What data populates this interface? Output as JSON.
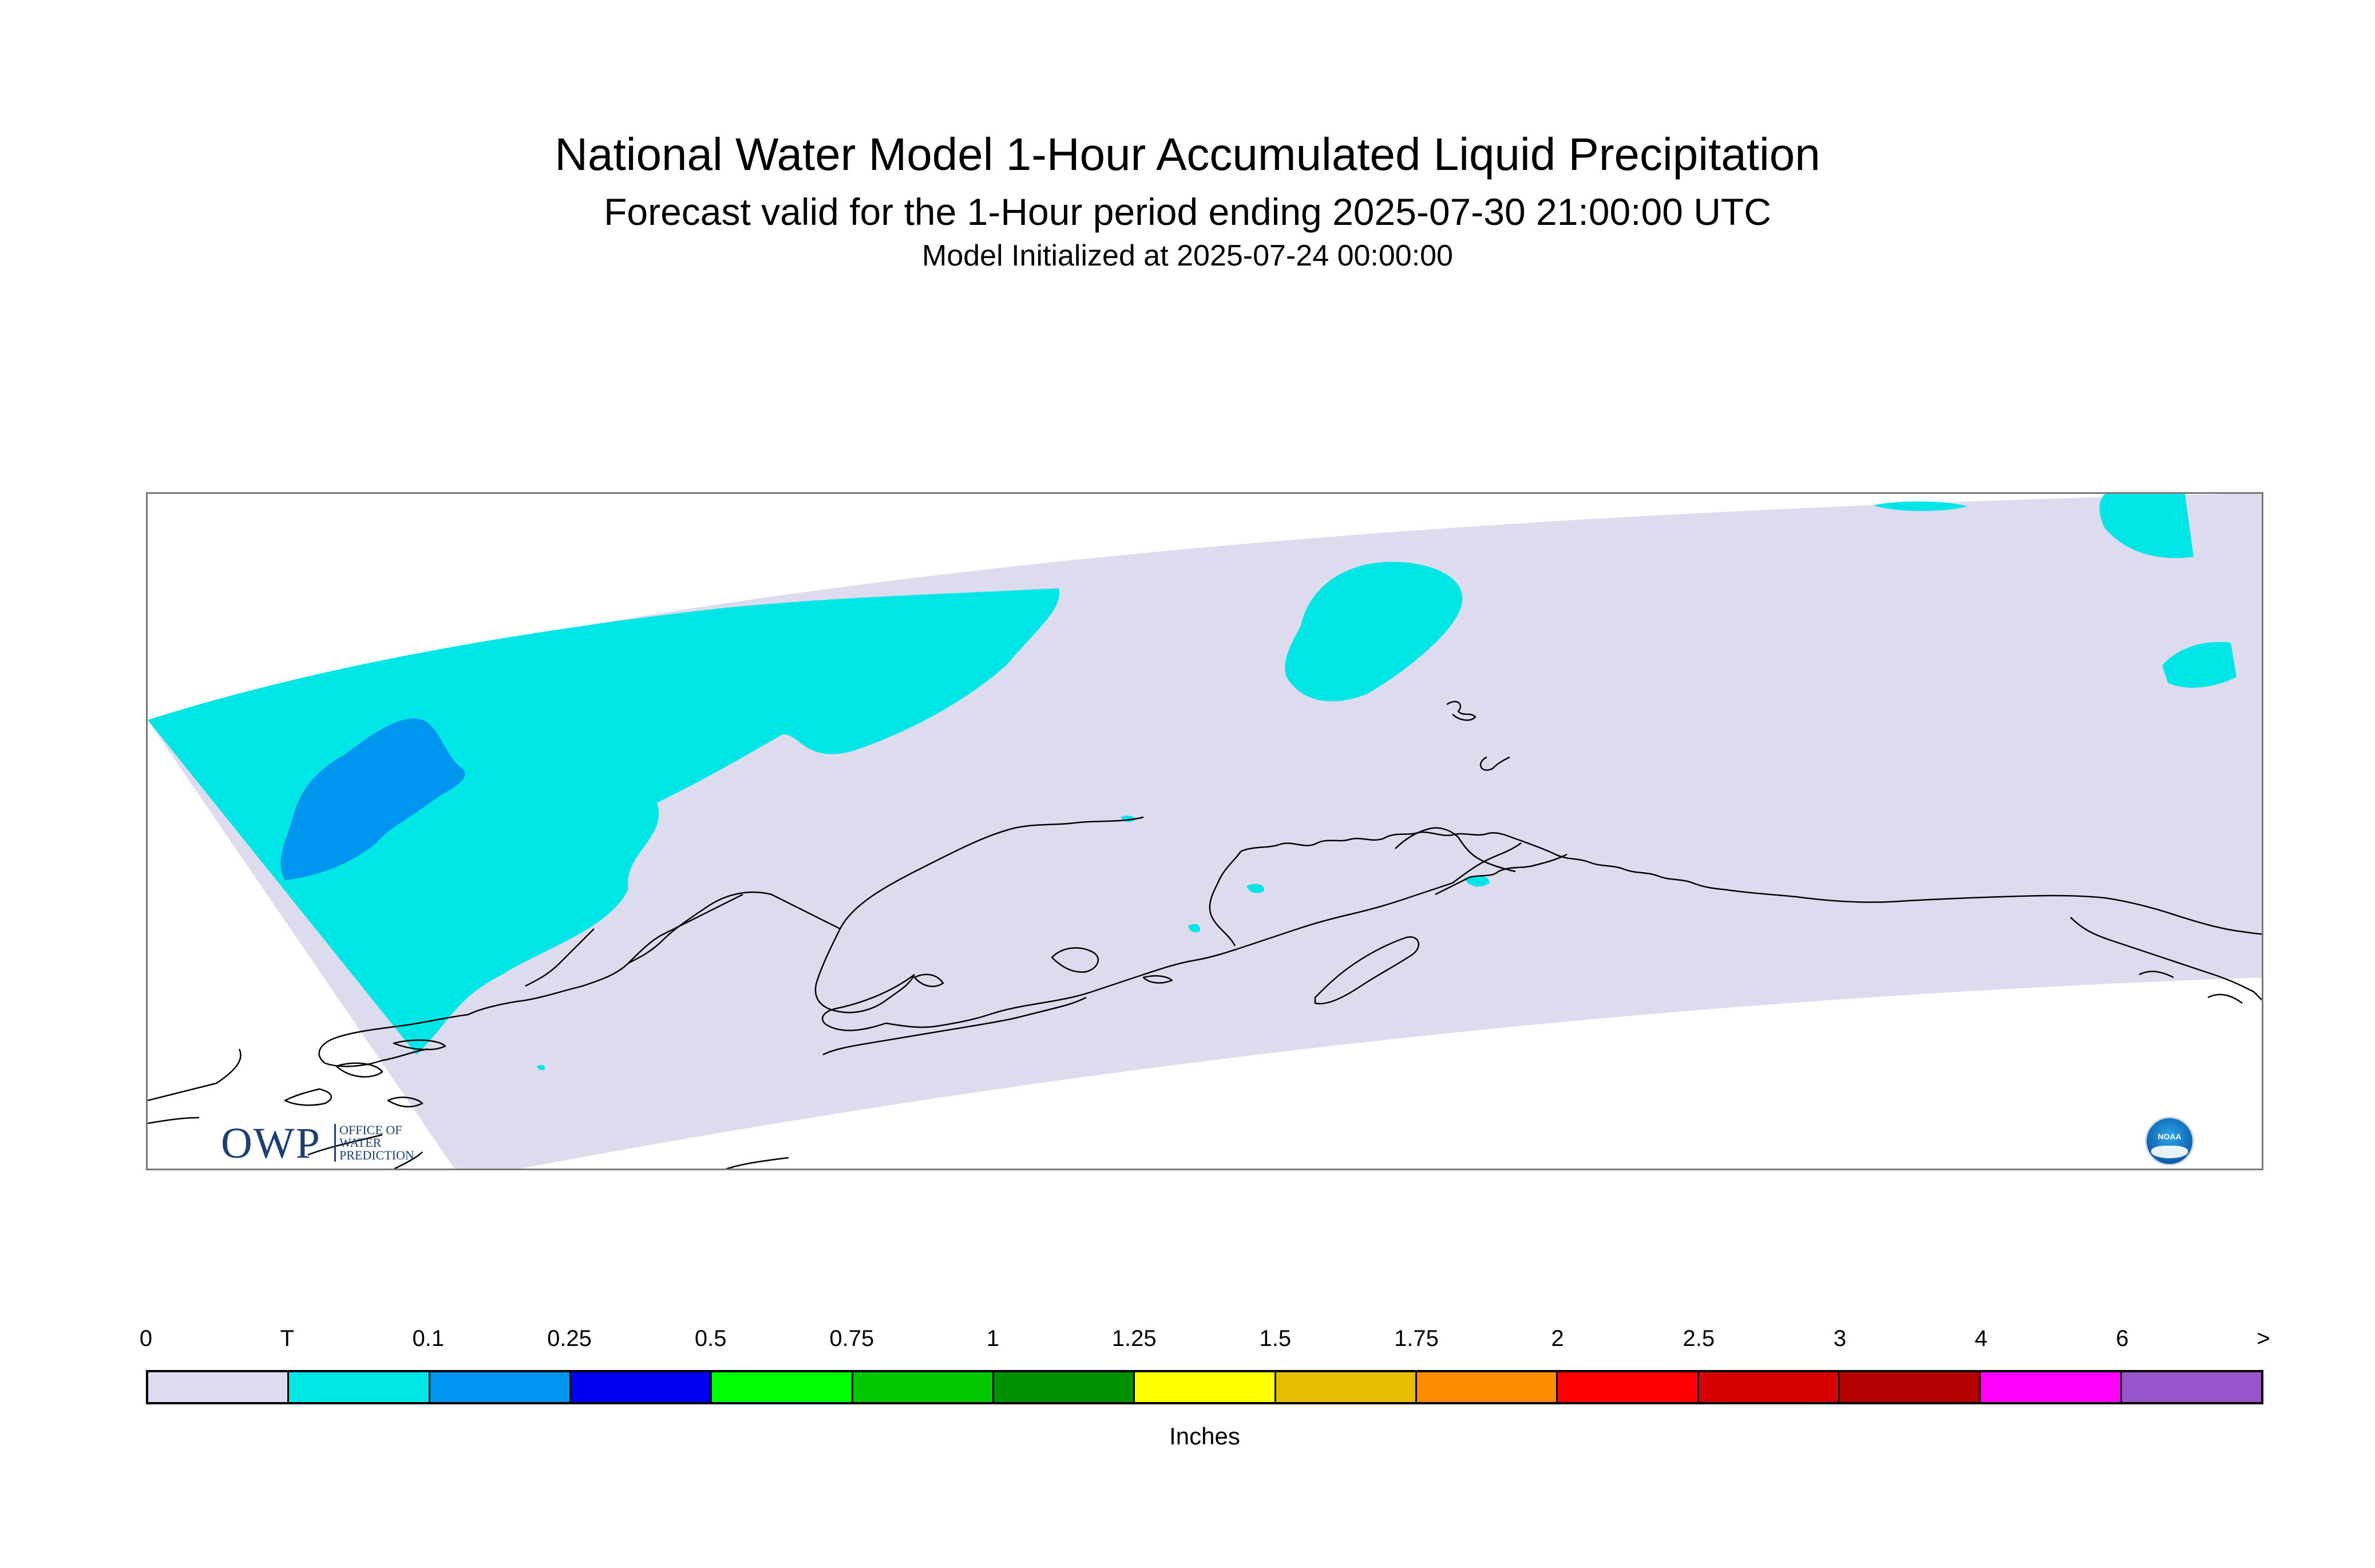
{
  "header": {
    "title": "National Water Model 1-Hour Accumulated Liquid Precipitation",
    "subtitle": "Forecast valid for the 1-Hour period ending 2025-07-30 21:00:00 UTC",
    "init_line": "Model Initialized at 2025-07-24 00:00:00"
  },
  "logos": {
    "owp": {
      "mark": "OWP",
      "line1": "OFFICE OF",
      "line2": "WATER",
      "line3": "PREDICTION"
    },
    "noaa": {
      "text": "NOAA"
    }
  },
  "map": {
    "domain_fill": "#dcdcee",
    "coastline_color": "#000000",
    "region_shown": "Alaska"
  },
  "legend": {
    "units": "Inches",
    "tick_labels": [
      "0",
      "T",
      "0.1",
      "0.25",
      "0.5",
      "0.75",
      "1",
      "1.25",
      "1.5",
      "1.75",
      "2",
      "2.5",
      "3",
      "4",
      "6",
      ">"
    ],
    "colors": [
      "#dcdcee",
      "#00e6e6",
      "#0096f0",
      "#0000f0",
      "#00ff00",
      "#00c800",
      "#009100",
      "#ffff00",
      "#e6be00",
      "#ff8c00",
      "#ff0000",
      "#d70000",
      "#b40000",
      "#ff00ff",
      "#9655c8"
    ]
  }
}
